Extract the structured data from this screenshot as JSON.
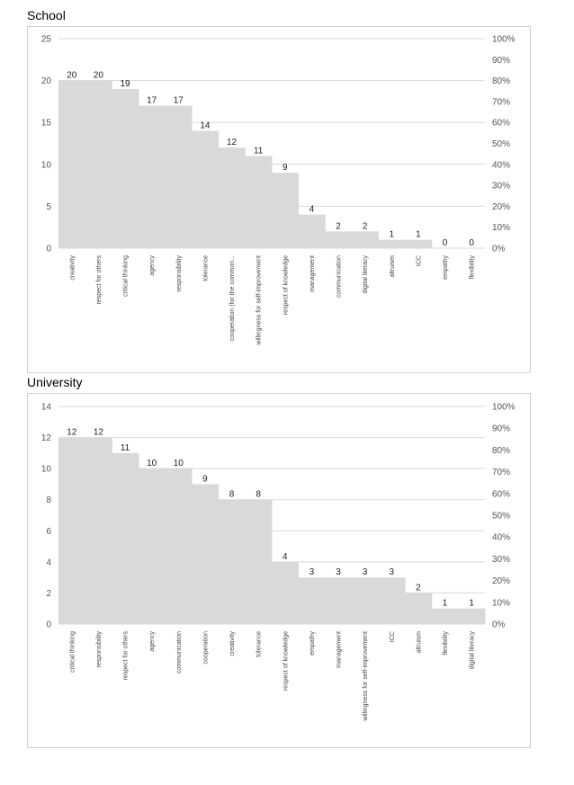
{
  "chart_data": [
    {
      "type": "area",
      "title": "School",
      "xlabel": "",
      "ylabel": "",
      "categories": [
        "creativity",
        "respect for others",
        "critical thinking",
        "agency",
        "responsibility",
        "tolerance",
        "cooperation (for the common...",
        "willingness for self-improvement",
        "respect of knowledge",
        "management",
        "communication",
        "digital literacy",
        "altruism",
        "ICC",
        "empathy",
        "flexibility"
      ],
      "values": [
        20,
        20,
        19,
        17,
        17,
        14,
        12,
        11,
        9,
        4,
        2,
        2,
        1,
        1,
        0,
        0
      ],
      "ylim": [
        0,
        25
      ],
      "yticks": [
        "0",
        "5",
        "10",
        "15",
        "20",
        "25"
      ],
      "y2ticks": [
        "0%",
        "10%",
        "20%",
        "30%",
        "40%",
        "50%",
        "60%",
        "70%",
        "80%",
        "90%",
        "100%"
      ],
      "grid": true,
      "color": "#d9d9d9"
    },
    {
      "type": "area",
      "title": "University",
      "xlabel": "",
      "ylabel": "",
      "categories": [
        "critical thinking",
        "responsibility",
        "respect for others",
        "agency",
        "communication",
        "cooperation",
        "creativity",
        "tolerance",
        "respect of knowledge",
        "empathy",
        "management",
        "willingness for self-improvement",
        "ICC",
        "altruism",
        "flexibility",
        "digital literacy"
      ],
      "values": [
        12,
        12,
        11,
        10,
        10,
        9,
        8,
        8,
        4,
        3,
        3,
        3,
        3,
        2,
        1,
        1
      ],
      "ylim": [
        0,
        14
      ],
      "yticks": [
        "0",
        "2",
        "4",
        "6",
        "8",
        "10",
        "12",
        "14"
      ],
      "y2ticks": [
        "0%",
        "10%",
        "20%",
        "30%",
        "40%",
        "50%",
        "60%",
        "70%",
        "80%",
        "90%",
        "100%"
      ],
      "grid": true,
      "color": "#d9d9d9"
    }
  ]
}
